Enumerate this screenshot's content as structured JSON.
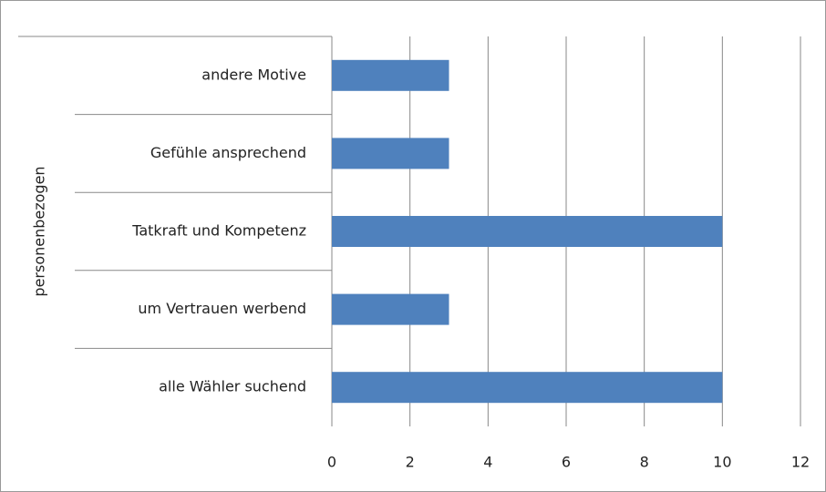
{
  "chart_data": {
    "type": "bar",
    "orientation": "horizontal",
    "group_label": "personenbezogen",
    "categories": [
      "andere Motive",
      "Gefühle ansprechend",
      "Tatkraft und Kompetenz",
      "um Vertrauen werbend",
      "alle Wähler suchend"
    ],
    "values": [
      3,
      3,
      10,
      3,
      10
    ],
    "color": "#4f81bd",
    "xlim": [
      0,
      12
    ],
    "xticks": [
      0,
      2,
      4,
      6,
      8,
      10,
      12
    ],
    "grid": true
  }
}
